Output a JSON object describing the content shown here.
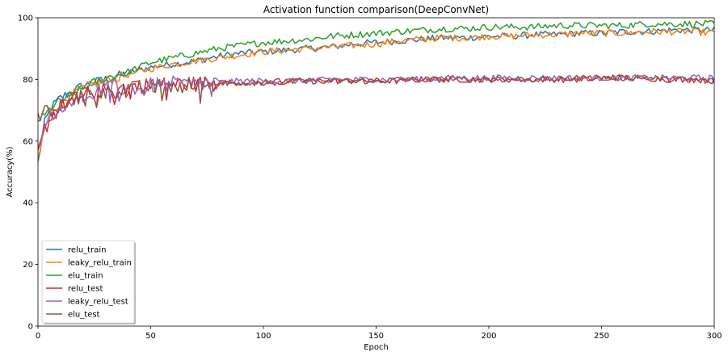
{
  "chart_data": {
    "type": "line",
    "title": "Activation function comparison(DeepConvNet)",
    "xlabel": "Epoch",
    "ylabel": "Accuracy(%)",
    "xlim": [
      0,
      300
    ],
    "ylim": [
      0,
      100
    ],
    "xticks": [
      0,
      50,
      100,
      150,
      200,
      250,
      300
    ],
    "yticks": [
      0,
      20,
      40,
      60,
      80,
      100
    ],
    "grid": false,
    "legend_position": "lower-left",
    "series": [
      {
        "name": "relu_train",
        "color": "#1f77b4",
        "points": [
          [
            0,
            53
          ],
          [
            3,
            66
          ],
          [
            6,
            71
          ],
          [
            10,
            74
          ],
          [
            15,
            76
          ],
          [
            20,
            78
          ],
          [
            25,
            79
          ],
          [
            30,
            80
          ],
          [
            35,
            81
          ],
          [
            40,
            82
          ],
          [
            45,
            83
          ],
          [
            50,
            84
          ],
          [
            60,
            85
          ],
          [
            70,
            86
          ],
          [
            80,
            87.5
          ],
          [
            90,
            88.5
          ],
          [
            100,
            89
          ],
          [
            110,
            89.5
          ],
          [
            120,
            90
          ],
          [
            130,
            90.5
          ],
          [
            140,
            91.5
          ],
          [
            150,
            92
          ],
          [
            160,
            92.5
          ],
          [
            170,
            93
          ],
          [
            180,
            93.5
          ],
          [
            190,
            93.5
          ],
          [
            200,
            94
          ],
          [
            210,
            94
          ],
          [
            220,
            94.5
          ],
          [
            230,
            94.5
          ],
          [
            240,
            95
          ],
          [
            250,
            95
          ],
          [
            260,
            95.5
          ],
          [
            270,
            95.5
          ],
          [
            280,
            96
          ],
          [
            290,
            96
          ],
          [
            300,
            96
          ]
        ]
      },
      {
        "name": "leaky_relu_train",
        "color": "#ff7f0e",
        "points": [
          [
            0,
            54
          ],
          [
            3,
            64
          ],
          [
            6,
            70
          ],
          [
            10,
            72
          ],
          [
            15,
            75
          ],
          [
            20,
            77
          ],
          [
            25,
            78.5
          ],
          [
            30,
            79.5
          ],
          [
            35,
            80.5
          ],
          [
            40,
            81.5
          ],
          [
            45,
            82.5
          ],
          [
            50,
            83.5
          ],
          [
            60,
            85
          ],
          [
            70,
            86
          ],
          [
            80,
            87
          ],
          [
            90,
            88
          ],
          [
            100,
            89
          ],
          [
            110,
            89.5
          ],
          [
            120,
            90
          ],
          [
            130,
            90.5
          ],
          [
            140,
            91
          ],
          [
            150,
            91.5
          ],
          [
            160,
            92.5
          ],
          [
            170,
            93
          ],
          [
            180,
            93.5
          ],
          [
            190,
            93.5
          ],
          [
            200,
            94
          ],
          [
            210,
            94
          ],
          [
            220,
            94.5
          ],
          [
            230,
            94.5
          ],
          [
            240,
            95
          ],
          [
            250,
            95
          ],
          [
            260,
            95
          ],
          [
            270,
            95.5
          ],
          [
            280,
            95.5
          ],
          [
            290,
            95.5
          ],
          [
            300,
            95
          ]
        ]
      },
      {
        "name": "elu_train",
        "color": "#2ca02c",
        "points": [
          [
            0,
            67
          ],
          [
            3,
            68
          ],
          [
            6,
            71
          ],
          [
            10,
            73
          ],
          [
            15,
            75
          ],
          [
            20,
            77
          ],
          [
            25,
            79
          ],
          [
            30,
            80.5
          ],
          [
            35,
            81.5
          ],
          [
            40,
            82.5
          ],
          [
            45,
            84
          ],
          [
            50,
            85.5
          ],
          [
            60,
            87
          ],
          [
            70,
            88.5
          ],
          [
            80,
            90
          ],
          [
            90,
            91
          ],
          [
            100,
            92
          ],
          [
            110,
            92.5
          ],
          [
            120,
            93
          ],
          [
            130,
            94
          ],
          [
            140,
            94.5
          ],
          [
            150,
            95
          ],
          [
            160,
            95.5
          ],
          [
            170,
            96
          ],
          [
            180,
            96.5
          ],
          [
            190,
            96.5
          ],
          [
            200,
            97
          ],
          [
            210,
            97
          ],
          [
            220,
            97
          ],
          [
            230,
            97.5
          ],
          [
            240,
            97.5
          ],
          [
            250,
            97.5
          ],
          [
            260,
            97.5
          ],
          [
            270,
            98
          ],
          [
            280,
            98
          ],
          [
            290,
            98
          ],
          [
            300,
            98
          ]
        ]
      },
      {
        "name": "relu_test",
        "color": "#d62728",
        "points": [
          [
            0,
            55
          ],
          [
            3,
            64
          ],
          [
            6,
            68
          ],
          [
            10,
            71
          ],
          [
            15,
            73
          ],
          [
            20,
            75
          ],
          [
            25,
            76
          ],
          [
            30,
            76.5
          ],
          [
            35,
            77
          ],
          [
            40,
            77.5
          ],
          [
            45,
            78
          ],
          [
            50,
            78
          ],
          [
            60,
            78.5
          ],
          [
            70,
            78.5
          ],
          [
            80,
            79
          ],
          [
            90,
            79
          ],
          [
            100,
            79
          ],
          [
            110,
            79
          ],
          [
            120,
            79.5
          ],
          [
            130,
            79.5
          ],
          [
            140,
            79.5
          ],
          [
            150,
            79.5
          ],
          [
            160,
            79.5
          ],
          [
            170,
            80
          ],
          [
            180,
            80
          ],
          [
            190,
            80
          ],
          [
            200,
            80
          ],
          [
            210,
            80
          ],
          [
            220,
            80
          ],
          [
            230,
            80
          ],
          [
            240,
            80
          ],
          [
            250,
            80.5
          ],
          [
            260,
            80.5
          ],
          [
            270,
            80.5
          ],
          [
            280,
            80
          ],
          [
            290,
            80
          ],
          [
            300,
            79.5
          ]
        ]
      },
      {
        "name": "leaky_relu_test",
        "color": "#9467bd",
        "points": [
          [
            0,
            56
          ],
          [
            3,
            65
          ],
          [
            6,
            69
          ],
          [
            10,
            71
          ],
          [
            15,
            73
          ],
          [
            20,
            75
          ],
          [
            25,
            76
          ],
          [
            30,
            77
          ],
          [
            35,
            77.5
          ],
          [
            40,
            77
          ],
          [
            45,
            77.5
          ],
          [
            50,
            78
          ],
          [
            60,
            78.5
          ],
          [
            70,
            78.5
          ],
          [
            80,
            79
          ],
          [
            90,
            79.5
          ],
          [
            100,
            79.5
          ],
          [
            110,
            79.5
          ],
          [
            120,
            79.5
          ],
          [
            130,
            80
          ],
          [
            140,
            80
          ],
          [
            150,
            80
          ],
          [
            160,
            80
          ],
          [
            170,
            80
          ],
          [
            180,
            80.5
          ],
          [
            190,
            80.5
          ],
          [
            200,
            80.5
          ],
          [
            210,
            80.5
          ],
          [
            220,
            80.5
          ],
          [
            230,
            80.5
          ],
          [
            240,
            80.5
          ],
          [
            250,
            80.5
          ],
          [
            260,
            80.5
          ],
          [
            270,
            80.5
          ],
          [
            280,
            80.5
          ],
          [
            290,
            80.5
          ],
          [
            300,
            80.5
          ]
        ]
      },
      {
        "name": "elu_test",
        "color": "#8c564b",
        "points": [
          [
            0,
            68
          ],
          [
            3,
            69
          ],
          [
            6,
            70
          ],
          [
            10,
            72
          ],
          [
            15,
            73.5
          ],
          [
            20,
            75
          ],
          [
            25,
            75.5
          ],
          [
            30,
            76
          ],
          [
            35,
            76.5
          ],
          [
            40,
            77
          ],
          [
            45,
            77
          ],
          [
            50,
            77.5
          ],
          [
            60,
            78
          ],
          [
            70,
            78
          ],
          [
            80,
            78.5
          ],
          [
            90,
            79
          ],
          [
            100,
            79
          ],
          [
            110,
            79.5
          ],
          [
            120,
            79.5
          ],
          [
            130,
            79.5
          ],
          [
            140,
            79.5
          ],
          [
            150,
            79.5
          ],
          [
            160,
            80
          ],
          [
            170,
            80
          ],
          [
            180,
            80
          ],
          [
            190,
            80
          ],
          [
            200,
            80
          ],
          [
            210,
            80
          ],
          [
            220,
            80
          ],
          [
            230,
            80
          ],
          [
            240,
            80.5
          ],
          [
            250,
            80.5
          ],
          [
            260,
            80.5
          ],
          [
            270,
            80.5
          ],
          [
            280,
            80
          ],
          [
            290,
            80
          ],
          [
            300,
            79.5
          ]
        ]
      }
    ]
  }
}
